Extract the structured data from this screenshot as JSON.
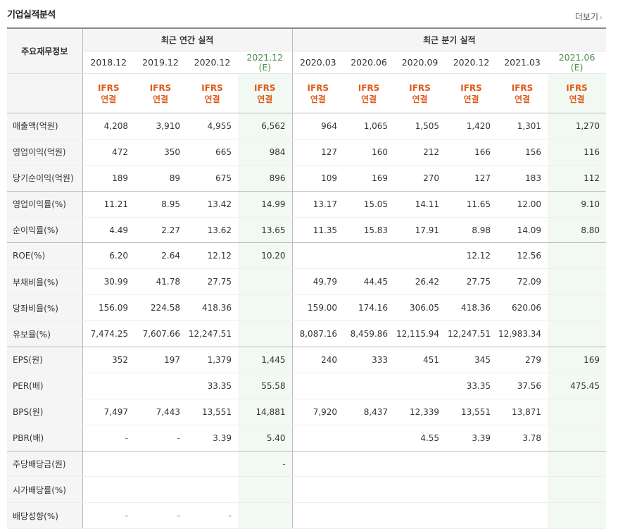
{
  "title": "기업실적분석",
  "more_label": "더보기",
  "more_arrow": "›",
  "table": {
    "label_header": "주요재무정보",
    "annual_header": "최근 연간 실적",
    "quarter_header": "최근 분기 실적",
    "periods": [
      {
        "date": "2018.12",
        "tag": "",
        "estimate": false
      },
      {
        "date": "2019.12",
        "tag": "",
        "estimate": false
      },
      {
        "date": "2020.12",
        "tag": "",
        "estimate": false
      },
      {
        "date": "2021.12",
        "tag": "(E)",
        "estimate": true
      },
      {
        "date": "2020.03",
        "tag": "",
        "estimate": false
      },
      {
        "date": "2020.06",
        "tag": "",
        "estimate": false
      },
      {
        "date": "2020.09",
        "tag": "",
        "estimate": false
      },
      {
        "date": "2020.12",
        "tag": "",
        "estimate": false
      },
      {
        "date": "2021.03",
        "tag": "",
        "estimate": false
      },
      {
        "date": "2021.06",
        "tag": "(E)",
        "estimate": true
      }
    ],
    "ifrs_line1": "IFRS",
    "ifrs_line2": "연결",
    "rows": [
      {
        "label": "매출액(억원)",
        "values": [
          "4,208",
          "3,910",
          "4,955",
          "6,562",
          "964",
          "1,065",
          "1,505",
          "1,420",
          "1,301",
          "1,270"
        ]
      },
      {
        "label": "영업이익(억원)",
        "values": [
          "472",
          "350",
          "665",
          "984",
          "127",
          "160",
          "212",
          "166",
          "156",
          "116"
        ]
      },
      {
        "label": "당기순이익(억원)",
        "values": [
          "189",
          "89",
          "675",
          "896",
          "109",
          "169",
          "270",
          "127",
          "183",
          "112"
        ]
      },
      {
        "label": "영업이익률(%)",
        "values": [
          "11.21",
          "8.95",
          "13.42",
          "14.99",
          "13.17",
          "15.05",
          "14.11",
          "11.65",
          "12.00",
          "9.10"
        ]
      },
      {
        "label": "순이익률(%)",
        "values": [
          "4.49",
          "2.27",
          "13.62",
          "13.65",
          "11.35",
          "15.83",
          "17.91",
          "8.98",
          "14.09",
          "8.80"
        ]
      },
      {
        "label": "ROE(%)",
        "values": [
          "6.20",
          "2.64",
          "12.12",
          "10.20",
          "",
          "",
          "",
          "12.12",
          "12.56",
          ""
        ]
      },
      {
        "label": "부채비율(%)",
        "values": [
          "30.99",
          "41.78",
          "27.75",
          "",
          "49.79",
          "44.45",
          "26.42",
          "27.75",
          "72.09",
          ""
        ]
      },
      {
        "label": "당좌비율(%)",
        "values": [
          "156.09",
          "224.58",
          "418.36",
          "",
          "159.00",
          "174.16",
          "306.05",
          "418.36",
          "620.06",
          ""
        ]
      },
      {
        "label": "유보율(%)",
        "values": [
          "7,474.25",
          "7,607.66",
          "12,247.51",
          "",
          "8,087.16",
          "8,459.86",
          "12,115.94",
          "12,247.51",
          "12,983.34",
          ""
        ]
      },
      {
        "label": "EPS(원)",
        "values": [
          "352",
          "197",
          "1,379",
          "1,445",
          "240",
          "333",
          "451",
          "345",
          "279",
          "169"
        ]
      },
      {
        "label": "PER(배)",
        "values": [
          "",
          "",
          "33.35",
          "55.58",
          "",
          "",
          "",
          "33.35",
          "37.56",
          "475.45"
        ]
      },
      {
        "label": "BPS(원)",
        "values": [
          "7,497",
          "7,443",
          "13,551",
          "14,881",
          "7,920",
          "8,437",
          "12,339",
          "13,551",
          "13,871",
          ""
        ]
      },
      {
        "label": "PBR(배)",
        "values": [
          "-",
          "-",
          "3.39",
          "5.40",
          "",
          "",
          "4.55",
          "3.39",
          "3.78",
          ""
        ]
      },
      {
        "label": "주당배당금(원)",
        "values": [
          "",
          "",
          "",
          "-",
          "",
          "",
          "",
          "",
          "",
          ""
        ]
      },
      {
        "label": "시가배당률(%)",
        "values": [
          "",
          "",
          "",
          "",
          "",
          "",
          "",
          "",
          "",
          ""
        ]
      },
      {
        "label": "배당성향(%)",
        "values": [
          "-",
          "-",
          "-",
          "",
          "",
          "",
          "",
          "",
          "",
          ""
        ]
      }
    ],
    "group_ends": [
      2,
      4,
      8,
      12
    ]
  }
}
